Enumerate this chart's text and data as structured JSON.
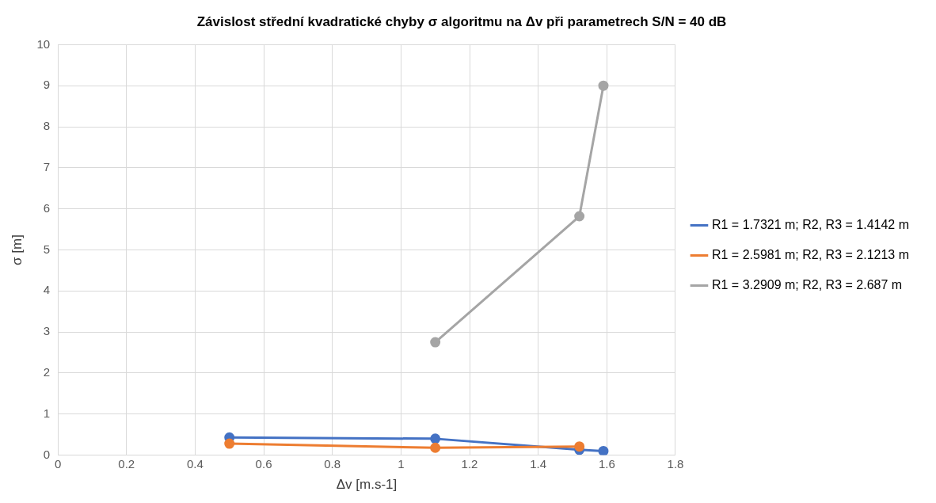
{
  "chart_data": {
    "type": "line",
    "title": "Závislost střední kvadratické chyby σ algoritmu na Δv při parametrech S/N = 40 dB",
    "xlabel": "Δv [m.s-1]",
    "ylabel": "σ [m]",
    "xlim": [
      0,
      1.8
    ],
    "xticks": [
      0,
      0.2,
      0.4,
      0.6,
      0.8,
      1,
      1.2,
      1.4,
      1.6,
      1.8
    ],
    "ylim": [
      0,
      10
    ],
    "yticks": [
      0,
      1,
      2,
      3,
      4,
      5,
      6,
      7,
      8,
      9,
      10
    ],
    "grid": true,
    "legend": "right",
    "marker": "circle",
    "line_style": "solid",
    "series": [
      {
        "name": "R1 = 1.7321 m; R2, R3 = 1.4142 m",
        "color": "#4472c4",
        "x": [
          0.5,
          1.1,
          1.52,
          1.59
        ],
        "values": [
          0.43,
          0.4,
          0.13,
          0.1
        ]
      },
      {
        "name": "R1 = 2.5981 m; R2, R3 = 2.1213 m",
        "color": "#ed7d31",
        "x": [
          0.5,
          1.1,
          1.52
        ],
        "values": [
          0.28,
          0.18,
          0.21
        ]
      },
      {
        "name": "R1 = 3.2909 m; R2, R3 = 2.687 m",
        "color": "#a5a5a5",
        "x": [
          1.1,
          1.52,
          1.59
        ],
        "values": [
          2.75,
          5.82,
          9.0
        ]
      }
    ]
  }
}
